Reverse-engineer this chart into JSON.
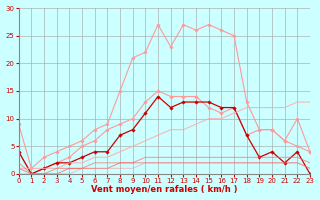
{
  "x": [
    0,
    1,
    2,
    3,
    4,
    5,
    6,
    7,
    8,
    9,
    10,
    11,
    12,
    13,
    14,
    15,
    16,
    17,
    18,
    19,
    20,
    21,
    22,
    23
  ],
  "series": [
    {
      "name": "max_gust_light",
      "color": "#ff9999",
      "alpha": 1.0,
      "linewidth": 0.8,
      "marker": "D",
      "markersize": 1.8,
      "values": [
        9,
        1,
        3,
        4,
        5,
        6,
        8,
        9,
        15,
        21,
        22,
        27,
        23,
        27,
        26,
        27,
        26,
        25,
        13,
        8,
        8,
        6,
        5,
        4
      ]
    },
    {
      "name": "mean_upper_light",
      "color": "#ff9999",
      "alpha": 1.0,
      "linewidth": 0.8,
      "marker": "D",
      "markersize": 1.8,
      "values": [
        4,
        0,
        1,
        2,
        3,
        5,
        6,
        8,
        9,
        10,
        13,
        15,
        14,
        14,
        14,
        12,
        11,
        12,
        7,
        8,
        8,
        6,
        10,
        4
      ]
    },
    {
      "name": "dark_red_main",
      "color": "#cc0000",
      "alpha": 1.0,
      "linewidth": 0.9,
      "marker": "D",
      "markersize": 1.8,
      "values": [
        4,
        0,
        1,
        2,
        2,
        3,
        4,
        4,
        7,
        8,
        11,
        14,
        12,
        13,
        13,
        13,
        12,
        12,
        7,
        3,
        4,
        2,
        4,
        0
      ]
    },
    {
      "name": "trend_line",
      "color": "#ffaaaa",
      "alpha": 0.85,
      "linewidth": 0.8,
      "marker": null,
      "values": [
        1,
        1,
        1,
        1,
        2,
        2,
        3,
        3,
        4,
        5,
        6,
        7,
        8,
        8,
        9,
        10,
        10,
        11,
        12,
        12,
        12,
        12,
        13,
        13
      ]
    },
    {
      "name": "flat_low1",
      "color": "#ff6666",
      "alpha": 0.7,
      "linewidth": 0.7,
      "marker": null,
      "values": [
        2,
        0,
        0,
        1,
        1,
        1,
        2,
        2,
        2,
        2,
        3,
        3,
        3,
        3,
        3,
        3,
        3,
        3,
        3,
        3,
        3,
        3,
        3,
        2
      ]
    },
    {
      "name": "flat_low2",
      "color": "#ff4444",
      "alpha": 0.6,
      "linewidth": 0.7,
      "marker": null,
      "values": [
        1,
        0,
        0,
        0,
        1,
        1,
        1,
        1,
        2,
        2,
        2,
        2,
        2,
        2,
        2,
        2,
        2,
        2,
        2,
        2,
        2,
        2,
        2,
        1
      ]
    },
    {
      "name": "flat_low3",
      "color": "#ff8888",
      "alpha": 0.5,
      "linewidth": 0.7,
      "marker": null,
      "values": [
        0,
        0,
        0,
        0,
        0,
        1,
        1,
        1,
        1,
        1,
        2,
        2,
        2,
        2,
        2,
        2,
        2,
        2,
        2,
        2,
        2,
        2,
        2,
        1
      ]
    }
  ],
  "xlabel": "Vent moyen/en rafales ( km/h )",
  "ylim": [
    0,
    30
  ],
  "xlim": [
    0,
    23
  ],
  "yticks": [
    0,
    5,
    10,
    15,
    20,
    25,
    30
  ],
  "xticks": [
    0,
    1,
    2,
    3,
    4,
    5,
    6,
    7,
    8,
    9,
    10,
    11,
    12,
    13,
    14,
    15,
    16,
    17,
    18,
    19,
    20,
    21,
    22,
    23
  ],
  "bg_color": "#ccffff",
  "grid_color": "#aaaaaa",
  "tick_color": "#cc0000",
  "label_color": "#cc0000",
  "tick_fontsize": 5.0,
  "xlabel_fontsize": 6.0
}
